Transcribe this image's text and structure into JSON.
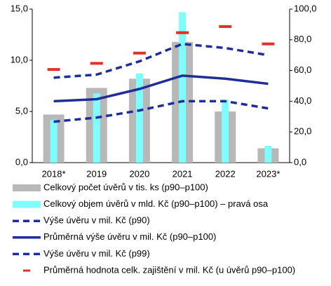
{
  "chart_data": {
    "type": "combo",
    "categories": [
      "2018*",
      "2019",
      "2020",
      "2021",
      "2022",
      "2023*"
    ],
    "ylim": [
      0,
      15
    ],
    "yticks": [
      {
        "value": 0,
        "label": "0,0"
      },
      {
        "value": 5,
        "label": "5,0"
      },
      {
        "value": 10,
        "label": "10,0"
      },
      {
        "value": 15,
        "label": "15,0"
      }
    ],
    "y2lim": [
      0,
      100
    ],
    "y2ticks": [
      {
        "value": 0,
        "label": "0,0"
      },
      {
        "value": 20,
        "label": "20,0"
      },
      {
        "value": 40,
        "label": "40,0"
      },
      {
        "value": 60,
        "label": "60,0"
      },
      {
        "value": 80,
        "label": "80,0"
      },
      {
        "value": 100,
        "label": "100,0"
      }
    ],
    "series": [
      {
        "name": "Celkový počet úvěrů v tis. ks (p90–p100)",
        "type": "bar",
        "color": "#b8b8b8",
        "values": [
          4.7,
          7.3,
          8.2,
          11.8,
          5.0,
          1.4
        ]
      },
      {
        "name": "Celkový objem úvěrů v mld. Kč (p90–p100) – pravá osa",
        "type": "bar",
        "axis": "y2",
        "color": "#7ffcfc",
        "values": [
          28,
          45,
          58,
          98,
          41,
          11
        ]
      },
      {
        "name": "Výše úvěru v mil. Kč (p90)",
        "type": "line",
        "dashed": true,
        "color": "#1f2d9a",
        "values": [
          4.0,
          4.4,
          5.1,
          6.0,
          6.0,
          5.3
        ]
      },
      {
        "name": "Průměrná výše úvěru v mil. Kč (p90–p100)",
        "type": "line",
        "dashed": false,
        "color": "#1f2d9a",
        "values": [
          6.0,
          6.2,
          7.2,
          8.5,
          8.2,
          7.7
        ]
      },
      {
        "name": "Výše úvěru v mil. Kč (p99)",
        "type": "line",
        "dashed": true,
        "color": "#1f2d9a",
        "values": [
          8.3,
          8.6,
          9.9,
          11.6,
          11.2,
          10.5
        ]
      },
      {
        "name": "Průměrná hodnota celk. zajištění v mil. Kč (u úvěrů p90–p100)",
        "type": "marker",
        "color": "#e0302a",
        "values": [
          9.1,
          9.7,
          10.7,
          12.7,
          13.3,
          11.6
        ]
      }
    ]
  }
}
